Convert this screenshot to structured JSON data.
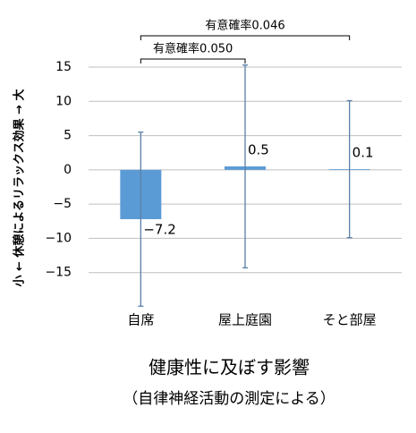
{
  "chart_data": {
    "type": "bar",
    "title": "健康性に及ぼす影響",
    "subtitle": "（自律神経活動の測定による）",
    "y_label": "小 ← 休憩によるリラックス効果 → 大",
    "categories": [
      "自席",
      "屋上庭園",
      "そと部屋"
    ],
    "values": [
      -7.2,
      0.5,
      0.1
    ],
    "value_labels": [
      "−7.2",
      "0.5",
      "0.1"
    ],
    "errors": [
      12.7,
      14.8,
      10
    ],
    "color": "#5b9bd5",
    "ylim": [
      -20,
      15
    ],
    "yticks": [
      {
        "value": -15,
        "label": "−15"
      },
      {
        "value": -10,
        "label": "−10"
      },
      {
        "value": -5,
        "label": "−5"
      },
      0,
      5,
      10,
      15
    ],
    "grid": true,
    "annotations": [
      {
        "text": "有意確率0.050"
      },
      {
        "text": "有意確率0.046"
      }
    ]
  }
}
